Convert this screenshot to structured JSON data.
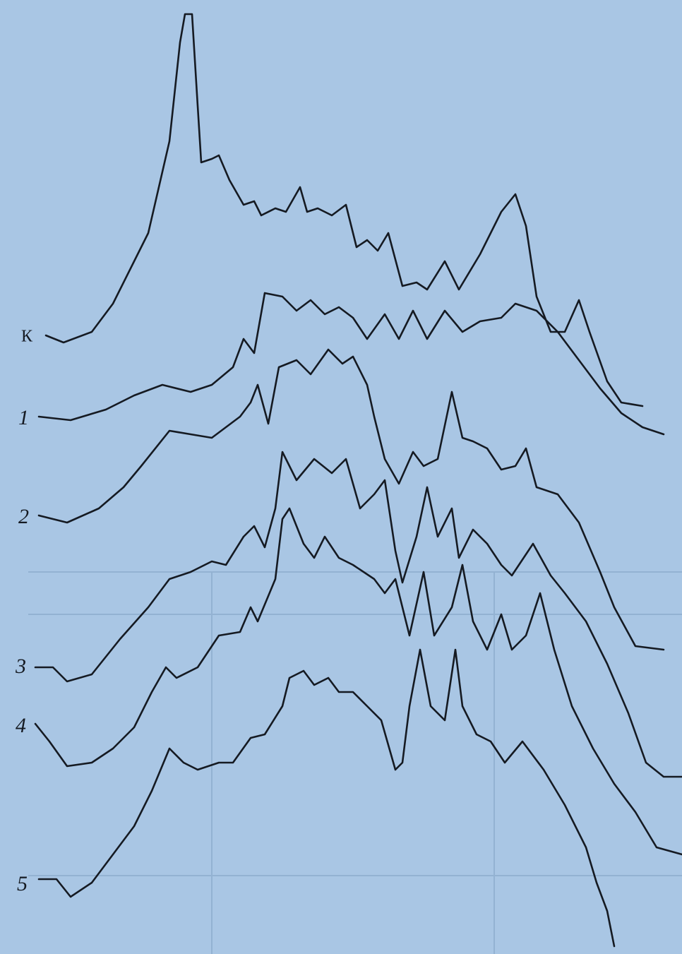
{
  "figure": {
    "curve_labels": [
      "К",
      "1",
      "2",
      "3",
      "4",
      "5"
    ]
  }
}
